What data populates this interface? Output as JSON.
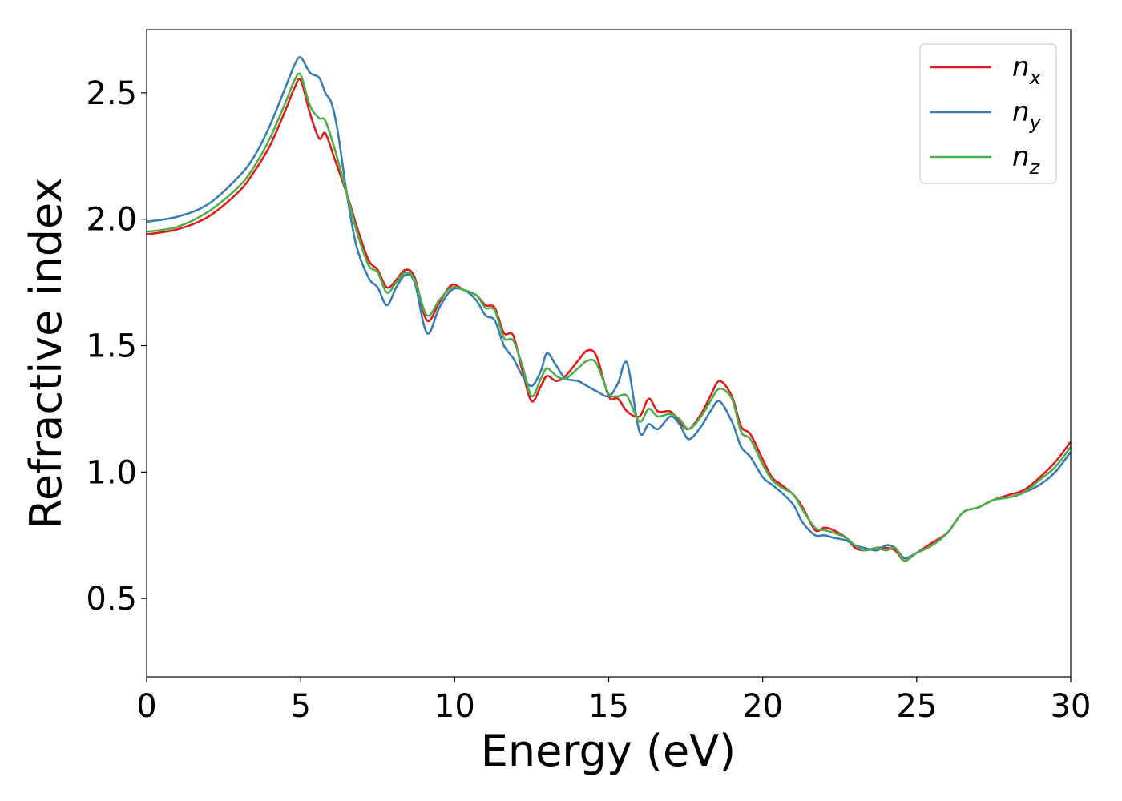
{
  "chart_data": {
    "type": "line",
    "title": "",
    "xlabel": "Energy (eV)",
    "ylabel": "Refractive index",
    "xlim": [
      0,
      30
    ],
    "ylim": [
      0.19,
      2.75
    ],
    "xticks": [
      0,
      5,
      10,
      15,
      20,
      25,
      30
    ],
    "yticks": [
      0.5,
      1.0,
      1.5,
      2.0,
      2.5
    ],
    "xtick_labels": [
      "0",
      "5",
      "10",
      "15",
      "20",
      "25",
      "30"
    ],
    "ytick_labels": [
      "0.5",
      "1.0",
      "1.5",
      "2.0",
      "2.5"
    ],
    "grid": false,
    "legend_position": "top-right",
    "series": [
      {
        "name": "n",
        "subscript": "x",
        "color": "#e41a1c",
        "x": [
          0,
          1,
          2,
          3,
          3.5,
          4,
          4.5,
          4.8,
          5.0,
          5.3,
          5.6,
          5.8,
          6.1,
          6.5,
          6.8,
          7.2,
          7.5,
          7.8,
          8.1,
          8.4,
          8.7,
          9.1,
          9.5,
          9.9,
          10.3,
          10.7,
          11.0,
          11.3,
          11.6,
          11.9,
          12.2,
          12.5,
          12.8,
          13.0,
          13.3,
          13.6,
          14.0,
          14.3,
          14.6,
          15.0,
          15.3,
          15.6,
          16.0,
          16.3,
          16.6,
          17.0,
          17.3,
          17.6,
          18.0,
          18.3,
          18.6,
          19.0,
          19.3,
          19.6,
          20.0,
          20.3,
          20.6,
          21.0,
          21.3,
          21.7,
          22.0,
          22.3,
          22.7,
          23.0,
          23.3,
          23.7,
          24.0,
          24.3,
          24.6,
          25.0,
          25.5,
          26.0,
          26.5,
          27.0,
          27.5,
          28.0,
          28.5,
          29.0,
          29.5,
          30.0
        ],
        "y": [
          1.94,
          1.96,
          2.01,
          2.11,
          2.19,
          2.29,
          2.43,
          2.52,
          2.55,
          2.42,
          2.32,
          2.34,
          2.24,
          2.1,
          1.98,
          1.84,
          1.8,
          1.73,
          1.76,
          1.8,
          1.77,
          1.6,
          1.67,
          1.74,
          1.72,
          1.7,
          1.66,
          1.65,
          1.55,
          1.54,
          1.4,
          1.28,
          1.34,
          1.38,
          1.36,
          1.38,
          1.44,
          1.48,
          1.46,
          1.3,
          1.29,
          1.24,
          1.22,
          1.29,
          1.24,
          1.24,
          1.2,
          1.17,
          1.23,
          1.3,
          1.36,
          1.3,
          1.18,
          1.15,
          1.05,
          0.98,
          0.95,
          0.91,
          0.86,
          0.77,
          0.78,
          0.77,
          0.74,
          0.7,
          0.69,
          0.7,
          0.7,
          0.69,
          0.65,
          0.68,
          0.72,
          0.76,
          0.84,
          0.86,
          0.89,
          0.91,
          0.93,
          0.98,
          1.04,
          1.12
        ]
      },
      {
        "name": "n",
        "subscript": "y",
        "color": "#377eb8",
        "x": [
          0,
          1,
          2,
          3,
          3.5,
          4,
          4.5,
          4.8,
          5.0,
          5.3,
          5.6,
          5.8,
          6.0,
          6.2,
          6.5,
          6.8,
          7.2,
          7.5,
          7.8,
          8.1,
          8.4,
          8.7,
          9.1,
          9.5,
          9.9,
          10.3,
          10.7,
          11.0,
          11.3,
          11.6,
          11.9,
          12.2,
          12.5,
          12.8,
          13.0,
          13.3,
          13.6,
          14.0,
          14.3,
          14.6,
          15.0,
          15.3,
          15.6,
          16.0,
          16.3,
          16.6,
          17.0,
          17.3,
          17.6,
          18.0,
          18.3,
          18.6,
          19.0,
          19.3,
          19.6,
          20.0,
          20.3,
          20.6,
          21.0,
          21.3,
          21.7,
          22.0,
          22.3,
          22.7,
          23.0,
          23.3,
          23.7,
          24.0,
          24.3,
          24.6,
          25.0,
          25.5,
          26.0,
          26.5,
          27.0,
          27.5,
          28.0,
          28.5,
          29.0,
          29.5,
          30.0
        ],
        "y": [
          1.99,
          2.01,
          2.06,
          2.17,
          2.25,
          2.37,
          2.52,
          2.61,
          2.64,
          2.58,
          2.56,
          2.5,
          2.46,
          2.35,
          2.1,
          1.9,
          1.77,
          1.73,
          1.66,
          1.73,
          1.78,
          1.75,
          1.55,
          1.65,
          1.72,
          1.72,
          1.68,
          1.62,
          1.6,
          1.5,
          1.45,
          1.38,
          1.34,
          1.4,
          1.47,
          1.42,
          1.37,
          1.36,
          1.34,
          1.32,
          1.3,
          1.35,
          1.43,
          1.16,
          1.19,
          1.17,
          1.22,
          1.19,
          1.13,
          1.18,
          1.24,
          1.28,
          1.2,
          1.1,
          1.06,
          0.98,
          0.95,
          0.92,
          0.87,
          0.8,
          0.75,
          0.75,
          0.74,
          0.73,
          0.71,
          0.7,
          0.69,
          0.71,
          0.7,
          0.66,
          0.68,
          0.71,
          0.76,
          0.84,
          0.86,
          0.89,
          0.9,
          0.92,
          0.95,
          1.0,
          1.08
        ]
      },
      {
        "name": "n",
        "subscript": "z",
        "color": "#4daf4a",
        "x": [
          0,
          1,
          2,
          3,
          3.5,
          4,
          4.5,
          4.8,
          5.0,
          5.3,
          5.6,
          5.8,
          6.1,
          6.5,
          6.8,
          7.2,
          7.5,
          7.8,
          8.1,
          8.4,
          8.7,
          9.1,
          9.5,
          9.9,
          10.3,
          10.7,
          11.0,
          11.3,
          11.6,
          11.9,
          12.2,
          12.5,
          12.8,
          13.0,
          13.3,
          13.6,
          14.0,
          14.3,
          14.6,
          15.0,
          15.3,
          15.6,
          16.0,
          16.3,
          16.6,
          17.0,
          17.3,
          17.6,
          18.0,
          18.3,
          18.6,
          19.0,
          19.3,
          19.6,
          20.0,
          20.3,
          20.6,
          21.0,
          21.3,
          21.7,
          22.0,
          22.3,
          22.7,
          23.0,
          23.3,
          23.7,
          24.0,
          24.3,
          24.6,
          25.0,
          25.5,
          26.0,
          26.5,
          27.0,
          27.5,
          28.0,
          28.5,
          29.0,
          29.5,
          30.0
        ],
        "y": [
          1.95,
          1.97,
          2.03,
          2.13,
          2.21,
          2.32,
          2.46,
          2.55,
          2.57,
          2.45,
          2.4,
          2.39,
          2.28,
          2.1,
          1.96,
          1.82,
          1.79,
          1.71,
          1.75,
          1.79,
          1.76,
          1.62,
          1.68,
          1.73,
          1.72,
          1.7,
          1.65,
          1.64,
          1.53,
          1.52,
          1.42,
          1.3,
          1.37,
          1.41,
          1.38,
          1.37,
          1.41,
          1.44,
          1.43,
          1.31,
          1.3,
          1.3,
          1.2,
          1.25,
          1.22,
          1.23,
          1.21,
          1.17,
          1.22,
          1.28,
          1.33,
          1.29,
          1.16,
          1.13,
          1.03,
          0.97,
          0.94,
          0.91,
          0.85,
          0.78,
          0.77,
          0.76,
          0.74,
          0.71,
          0.69,
          0.7,
          0.69,
          0.7,
          0.65,
          0.68,
          0.71,
          0.76,
          0.84,
          0.86,
          0.89,
          0.9,
          0.92,
          0.97,
          1.02,
          1.1
        ]
      }
    ]
  }
}
